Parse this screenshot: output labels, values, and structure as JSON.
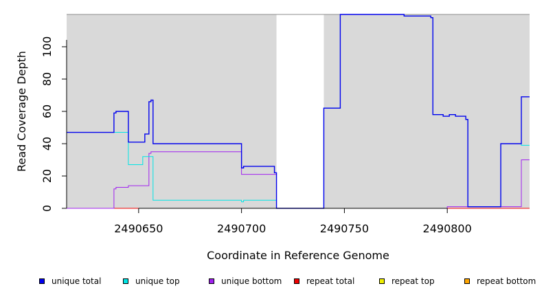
{
  "chart_data": {
    "type": "line",
    "step": true,
    "xlabel": "Coordinate in Reference Genome",
    "ylabel": "Read Coverage Depth",
    "xlim": [
      2490615,
      2490840
    ],
    "ylim": [
      0,
      120
    ],
    "x_ticks": [
      2490650,
      2490700,
      2490750,
      2490800
    ],
    "x_tick_labels": [
      "2490650",
      "2490700",
      "2490750",
      "2490800"
    ],
    "y_ticks": [
      0,
      20,
      40,
      60,
      80,
      100
    ],
    "y_tick_labels": [
      "0",
      "20",
      "40",
      "60",
      "80",
      "100"
    ],
    "gray_regions": [
      [
        2490615,
        2490717
      ],
      [
        2490740,
        2490840
      ]
    ],
    "grid": false,
    "legend_position": "bottom",
    "series": [
      {
        "name": "unique total",
        "color": "#0000ee",
        "x": [
          2490615,
          2490638,
          2490639,
          2490645,
          2490650,
          2490653,
          2490655,
          2490656,
          2490657,
          2490700,
          2490701,
          2490716,
          2490717,
          2490740,
          2490748,
          2490763,
          2490779,
          2490792,
          2490793,
          2490798,
          2490801,
          2490804,
          2490809,
          2490810,
          2490826,
          2490836,
          2490840
        ],
        "values": [
          47,
          59,
          60,
          41,
          41,
          46,
          66,
          67,
          40,
          25,
          26,
          22,
          0,
          62,
          120,
          120,
          119,
          118,
          58,
          57,
          58,
          57,
          55,
          1,
          40,
          69,
          69
        ]
      },
      {
        "name": "unique top",
        "color": "#00e5e5",
        "x": [
          2490615,
          2490645,
          2490652,
          2490657,
          2490700,
          2490701,
          2490717,
          2490740,
          2490748,
          2490779,
          2490792,
          2490793,
          2490798,
          2490801,
          2490804,
          2490809,
          2490810,
          2490826,
          2490836,
          2490840
        ],
        "values": [
          47,
          27,
          32,
          5,
          4,
          5,
          0,
          62,
          120,
          119,
          118,
          58,
          57,
          58,
          57,
          55,
          1,
          40,
          39,
          39
        ]
      },
      {
        "name": "unique bottom",
        "color": "#a020f0",
        "x": [
          2490615,
          2490638,
          2490639,
          2490645,
          2490655,
          2490656,
          2490700,
          2490716,
          2490717,
          2490800,
          2490836,
          2490840
        ],
        "values": [
          0,
          12,
          13,
          14,
          34,
          35,
          21,
          21,
          0,
          1,
          30,
          30
        ]
      },
      {
        "name": "repeat total",
        "color": "#ee0000",
        "x": [
          2490615,
          2490840
        ],
        "values": [
          0,
          0
        ]
      },
      {
        "name": "repeat top",
        "color": "#eeee00",
        "x": [
          2490615,
          2490840
        ],
        "values": [
          0,
          0
        ]
      },
      {
        "name": "repeat bottom",
        "color": "#ffa500",
        "x": [
          2490615,
          2490840
        ],
        "values": [
          0,
          0
        ]
      }
    ]
  }
}
